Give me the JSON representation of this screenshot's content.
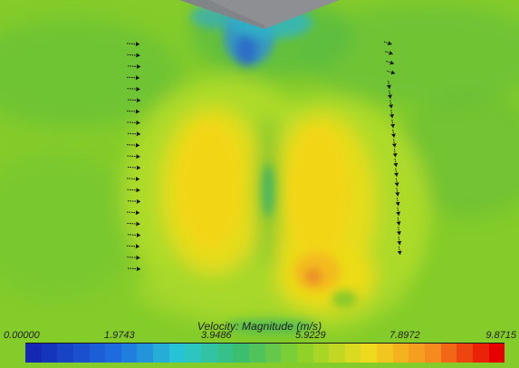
{
  "colorbar": {
    "title": "Velocity: Magnitude (m/s)",
    "ticks": [
      "0.00000",
      "1.9743",
      "3.9486",
      "5.9229",
      "7.8972",
      "9.8715"
    ],
    "min": 0.0,
    "max": 9.8715,
    "segments": 30
  },
  "colors": {
    "low": "#1428b4",
    "mid": "#8ed420",
    "high": "#e60000",
    "background_field": "#7ec82a",
    "hot_core": "#f7cf12",
    "vector": "#111111"
  },
  "arrows": {
    "left_column": 21,
    "right_column": 22
  }
}
